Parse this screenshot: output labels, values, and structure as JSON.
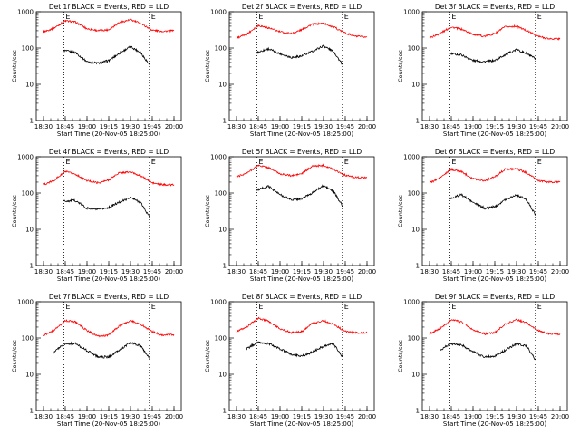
{
  "figure": {
    "series_colors": {
      "events": "#000000",
      "lld": "#ff0000"
    },
    "background": "#ffffff",
    "panel_labels": {
      "ylabel": "Counts/sec",
      "xlabel": "Start Time (20-Nov-05 18:25:00)",
      "flag_letter": "E"
    }
  },
  "chart_data": [
    {
      "type": "line",
      "title": "Det 1f BLACK = Events, RED = LLD",
      "xlabel": "Start Time (20-Nov-05 18:25:00)",
      "ylabel": "Counts/sec",
      "yscale": "log",
      "ylim": [
        1,
        1000
      ],
      "xticks": [
        "18:30",
        "18:45",
        "19:00",
        "19:15",
        "19:30",
        "19:45",
        "20:00"
      ],
      "yticks": [
        "1",
        "10",
        "100",
        "1000"
      ],
      "markers": [
        "18:44",
        "19:43"
      ],
      "series": [
        {
          "name": "Events",
          "color": "#000000",
          "x": [
            "18:44",
            "18:52",
            "19:00",
            "19:08",
            "19:15",
            "19:22",
            "19:30",
            "19:37",
            "19:43"
          ],
          "values": [
            85,
            75,
            42,
            38,
            45,
            70,
            110,
            75,
            35
          ]
        },
        {
          "name": "LLD",
          "color": "#ff0000",
          "x": [
            "18:30",
            "18:37",
            "18:45",
            "18:52",
            "19:00",
            "19:08",
            "19:15",
            "19:22",
            "19:30",
            "19:37",
            "19:45",
            "19:52",
            "20:00"
          ],
          "values": [
            280,
            350,
            560,
            520,
            340,
            300,
            320,
            500,
            600,
            480,
            310,
            290,
            300
          ]
        }
      ]
    },
    {
      "type": "line",
      "title": "Det 2f BLACK = Events, RED = LLD",
      "xlabel": "Start Time (20-Nov-05 18:25:00)",
      "ylabel": "Counts/sec",
      "yscale": "log",
      "ylim": [
        1,
        1000
      ],
      "xticks": [
        "18:30",
        "18:45",
        "19:00",
        "19:15",
        "19:30",
        "19:45",
        "20:00"
      ],
      "yticks": [
        "1",
        "10",
        "100",
        "1000"
      ],
      "markers": [
        "18:44",
        "19:43"
      ],
      "series": [
        {
          "name": "Events",
          "color": "#000000",
          "x": [
            "18:44",
            "18:52",
            "19:00",
            "19:08",
            "19:15",
            "19:22",
            "19:30",
            "19:37",
            "19:43"
          ],
          "values": [
            75,
            95,
            70,
            55,
            60,
            80,
            115,
            80,
            35
          ]
        },
        {
          "name": "LLD",
          "color": "#ff0000",
          "x": [
            "18:30",
            "18:37",
            "18:45",
            "18:52",
            "19:00",
            "19:08",
            "19:15",
            "19:22",
            "19:30",
            "19:37",
            "19:45",
            "19:52",
            "20:00"
          ],
          "values": [
            190,
            240,
            420,
            360,
            280,
            250,
            320,
            450,
            480,
            380,
            260,
            210,
            200
          ]
        }
      ]
    },
    {
      "type": "line",
      "title": "Det 3f BLACK = Events, RED = LLD",
      "xlabel": "Start Time (20-Nov-05 18:25:00)",
      "ylabel": "Counts/sec",
      "yscale": "log",
      "ylim": [
        1,
        1000
      ],
      "xticks": [
        "18:30",
        "18:45",
        "19:00",
        "19:15",
        "19:30",
        "19:45",
        "20:00"
      ],
      "yticks": [
        "1",
        "10",
        "100",
        "1000"
      ],
      "markers": [
        "18:44",
        "19:43"
      ],
      "series": [
        {
          "name": "Events",
          "color": "#000000",
          "x": [
            "18:44",
            "18:52",
            "19:00",
            "19:08",
            "19:15",
            "19:22",
            "19:30",
            "19:37",
            "19:43"
          ],
          "values": [
            70,
            65,
            45,
            42,
            45,
            65,
            90,
            70,
            50
          ]
        },
        {
          "name": "LLD",
          "color": "#ff0000",
          "x": [
            "18:30",
            "18:37",
            "18:45",
            "18:52",
            "19:00",
            "19:08",
            "19:15",
            "19:22",
            "19:30",
            "19:37",
            "19:45",
            "19:52",
            "20:00"
          ],
          "values": [
            190,
            250,
            380,
            330,
            240,
            210,
            250,
            380,
            400,
            300,
            210,
            180,
            180
          ]
        }
      ]
    },
    {
      "type": "line",
      "title": "Det 4f BLACK = Events, RED = LLD",
      "xlabel": "Start Time (20-Nov-05 18:25:00)",
      "ylabel": "Counts/sec",
      "yscale": "log",
      "ylim": [
        1,
        1000
      ],
      "xticks": [
        "18:30",
        "18:45",
        "19:00",
        "19:15",
        "19:30",
        "19:45",
        "20:00"
      ],
      "yticks": [
        "1",
        "10",
        "100",
        "1000"
      ],
      "markers": [
        "18:44",
        "19:43"
      ],
      "series": [
        {
          "name": "Events",
          "color": "#000000",
          "x": [
            "18:44",
            "18:52",
            "19:00",
            "19:08",
            "19:15",
            "19:22",
            "19:30",
            "19:37",
            "19:43"
          ],
          "values": [
            60,
            62,
            38,
            35,
            40,
            55,
            75,
            55,
            22
          ]
        },
        {
          "name": "LLD",
          "color": "#ff0000",
          "x": [
            "18:30",
            "18:37",
            "18:45",
            "18:52",
            "19:00",
            "19:08",
            "19:15",
            "19:22",
            "19:30",
            "19:37",
            "19:45",
            "19:52",
            "20:00"
          ],
          "values": [
            170,
            220,
            390,
            330,
            220,
            190,
            230,
            360,
            380,
            300,
            190,
            170,
            170
          ]
        }
      ]
    },
    {
      "type": "line",
      "title": "Det 5f BLACK = Events, RED = LLD",
      "xlabel": "Start Time (20-Nov-05 18:25:00)",
      "ylabel": "Counts/sec",
      "yscale": "log",
      "ylim": [
        1,
        1000
      ],
      "xticks": [
        "18:30",
        "18:45",
        "19:00",
        "19:15",
        "19:30",
        "19:45",
        "20:00"
      ],
      "yticks": [
        "1",
        "10",
        "100",
        "1000"
      ],
      "markers": [
        "18:44",
        "19:43"
      ],
      "series": [
        {
          "name": "Events",
          "color": "#000000",
          "x": [
            "18:44",
            "18:52",
            "19:00",
            "19:08",
            "19:15",
            "19:22",
            "19:30",
            "19:37",
            "19:43"
          ],
          "values": [
            120,
            155,
            90,
            65,
            70,
            100,
            160,
            110,
            45
          ]
        },
        {
          "name": "LLD",
          "color": "#ff0000",
          "x": [
            "18:30",
            "18:37",
            "18:45",
            "18:52",
            "19:00",
            "19:08",
            "19:15",
            "19:22",
            "19:30",
            "19:37",
            "19:45",
            "19:52",
            "20:00"
          ],
          "values": [
            280,
            350,
            580,
            500,
            340,
            300,
            340,
            540,
            580,
            450,
            310,
            270,
            270
          ]
        }
      ]
    },
    {
      "type": "line",
      "title": "Det 6f BLACK = Events, RED = LLD",
      "xlabel": "Start Time (20-Nov-05 18:25:00)",
      "ylabel": "Counts/sec",
      "yscale": "log",
      "ylim": [
        1,
        1000
      ],
      "xticks": [
        "18:30",
        "18:45",
        "19:00",
        "19:15",
        "19:30",
        "19:45",
        "20:00"
      ],
      "yticks": [
        "1",
        "10",
        "100",
        "1000"
      ],
      "markers": [
        "18:44",
        "19:43"
      ],
      "series": [
        {
          "name": "Events",
          "color": "#000000",
          "x": [
            "18:44",
            "18:52",
            "19:00",
            "19:08",
            "19:15",
            "19:22",
            "19:30",
            "19:37",
            "19:43"
          ],
          "values": [
            70,
            90,
            55,
            38,
            42,
            65,
            90,
            65,
            25
          ]
        },
        {
          "name": "LLD",
          "color": "#ff0000",
          "x": [
            "18:30",
            "18:37",
            "18:45",
            "18:52",
            "19:00",
            "19:08",
            "19:15",
            "19:22",
            "19:30",
            "19:37",
            "19:45",
            "19:52",
            "20:00"
          ],
          "values": [
            190,
            260,
            450,
            390,
            250,
            220,
            280,
            450,
            470,
            360,
            220,
            200,
            200
          ]
        }
      ]
    },
    {
      "type": "line",
      "title": "Det 7f BLACK = Events, RED = LLD",
      "xlabel": "Start Time (20-Nov-05 18:25:00)",
      "ylabel": "Counts/sec",
      "yscale": "log",
      "ylim": [
        1,
        1000
      ],
      "xticks": [
        "18:30",
        "18:45",
        "19:00",
        "19:15",
        "19:30",
        "19:45",
        "20:00"
      ],
      "yticks": [
        "1",
        "10",
        "100",
        "1000"
      ],
      "markers": [
        "18:44",
        "19:43"
      ],
      "series": [
        {
          "name": "Events",
          "color": "#000000",
          "x": [
            "18:37",
            "18:44",
            "18:52",
            "19:00",
            "19:08",
            "19:15",
            "19:22",
            "19:30",
            "19:37",
            "19:43"
          ],
          "values": [
            40,
            70,
            70,
            45,
            30,
            30,
            45,
            75,
            60,
            28
          ]
        },
        {
          "name": "LLD",
          "color": "#ff0000",
          "x": [
            "18:30",
            "18:37",
            "18:45",
            "18:52",
            "19:00",
            "19:08",
            "19:15",
            "19:22",
            "19:30",
            "19:37",
            "19:45",
            "19:52",
            "20:00"
          ],
          "values": [
            120,
            160,
            300,
            280,
            160,
            110,
            120,
            210,
            300,
            240,
            150,
            120,
            125
          ]
        }
      ]
    },
    {
      "type": "line",
      "title": "Det 8f BLACK = Events, RED = LLD",
      "xlabel": "Start Time (20-Nov-05 18:25:00)",
      "ylabel": "Counts/sec",
      "yscale": "log",
      "ylim": [
        1,
        1000
      ],
      "xticks": [
        "18:30",
        "18:45",
        "19:00",
        "19:15",
        "19:30",
        "19:45",
        "20:00"
      ],
      "yticks": [
        "1",
        "10",
        "100",
        "1000"
      ],
      "markers": [
        "18:44",
        "19:43"
      ],
      "series": [
        {
          "name": "Events",
          "color": "#000000",
          "x": [
            "18:37",
            "18:44",
            "18:52",
            "19:00",
            "19:08",
            "19:15",
            "19:22",
            "19:30",
            "19:37",
            "19:43"
          ],
          "values": [
            50,
            75,
            70,
            50,
            35,
            32,
            40,
            60,
            70,
            30
          ]
        },
        {
          "name": "LLD",
          "color": "#ff0000",
          "x": [
            "18:30",
            "18:37",
            "18:45",
            "18:52",
            "19:00",
            "19:08",
            "19:15",
            "19:22",
            "19:30",
            "19:37",
            "19:45",
            "19:52",
            "20:00"
          ],
          "values": [
            150,
            200,
            350,
            290,
            180,
            140,
            150,
            250,
            300,
            240,
            150,
            140,
            140
          ]
        }
      ]
    },
    {
      "type": "line",
      "title": "Det 9f BLACK = Events, RED = LLD",
      "xlabel": "Start Time (20-Nov-05 18:25:00)",
      "ylabel": "Counts/sec",
      "yscale": "log",
      "ylim": [
        1,
        1000
      ],
      "xticks": [
        "18:30",
        "18:45",
        "19:00",
        "19:15",
        "19:30",
        "19:45",
        "20:00"
      ],
      "yticks": [
        "1",
        "10",
        "100",
        "1000"
      ],
      "markers": [
        "18:44",
        "19:43"
      ],
      "series": [
        {
          "name": "Events",
          "color": "#000000",
          "x": [
            "18:37",
            "18:44",
            "18:52",
            "19:00",
            "19:08",
            "19:15",
            "19:22",
            "19:30",
            "19:37",
            "19:43"
          ],
          "values": [
            45,
            70,
            65,
            42,
            30,
            32,
            45,
            70,
            60,
            25
          ]
        },
        {
          "name": "LLD",
          "color": "#ff0000",
          "x": [
            "18:30",
            "18:37",
            "18:45",
            "18:52",
            "19:00",
            "19:08",
            "19:15",
            "19:22",
            "19:30",
            "19:37",
            "19:45",
            "19:52",
            "20:00"
          ],
          "values": [
            130,
            180,
            320,
            280,
            170,
            130,
            140,
            240,
            320,
            260,
            160,
            130,
            130
          ]
        }
      ]
    }
  ]
}
